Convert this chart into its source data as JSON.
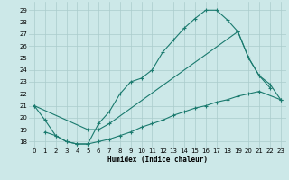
{
  "xlabel": "Humidex (Indice chaleur)",
  "bg_color": "#cce8e8",
  "grid_color": "#aacccc",
  "line_color": "#1a7a6e",
  "xlim": [
    -0.5,
    23.5
  ],
  "ylim": [
    17.5,
    29.7
  ],
  "xticks": [
    0,
    1,
    2,
    3,
    4,
    5,
    6,
    7,
    8,
    9,
    10,
    11,
    12,
    13,
    14,
    15,
    16,
    17,
    18,
    19,
    20,
    21,
    22,
    23
  ],
  "yticks": [
    18,
    19,
    20,
    21,
    22,
    23,
    24,
    25,
    26,
    27,
    28,
    29
  ],
  "c1x": [
    0,
    1,
    2,
    3,
    4,
    5,
    6,
    7,
    8,
    9,
    10,
    11,
    12,
    13,
    14,
    15,
    16,
    17,
    18,
    19,
    20,
    21,
    22
  ],
  "c1y": [
    21.0,
    19.8,
    18.5,
    18.0,
    17.8,
    17.8,
    19.5,
    20.5,
    22.0,
    23.0,
    23.3,
    24.0,
    25.5,
    26.5,
    27.5,
    28.3,
    29.0,
    29.0,
    28.2,
    27.2,
    25.0,
    23.5,
    22.5
  ],
  "c2x": [
    0,
    5,
    6,
    7,
    19,
    20,
    21,
    22,
    23
  ],
  "c2y": [
    21.0,
    19.0,
    19.0,
    19.5,
    27.2,
    25.0,
    23.5,
    22.8,
    21.5
  ],
  "c3x": [
    1,
    2,
    3,
    4,
    5,
    6,
    7,
    8,
    9,
    10,
    11,
    12,
    13,
    14,
    15,
    16,
    17,
    18,
    19,
    20,
    21,
    23
  ],
  "c3y": [
    18.8,
    18.5,
    18.0,
    17.8,
    17.8,
    18.0,
    18.2,
    18.5,
    18.8,
    19.2,
    19.5,
    19.8,
    20.2,
    20.5,
    20.8,
    21.0,
    21.3,
    21.5,
    21.8,
    22.0,
    22.2,
    21.5
  ]
}
